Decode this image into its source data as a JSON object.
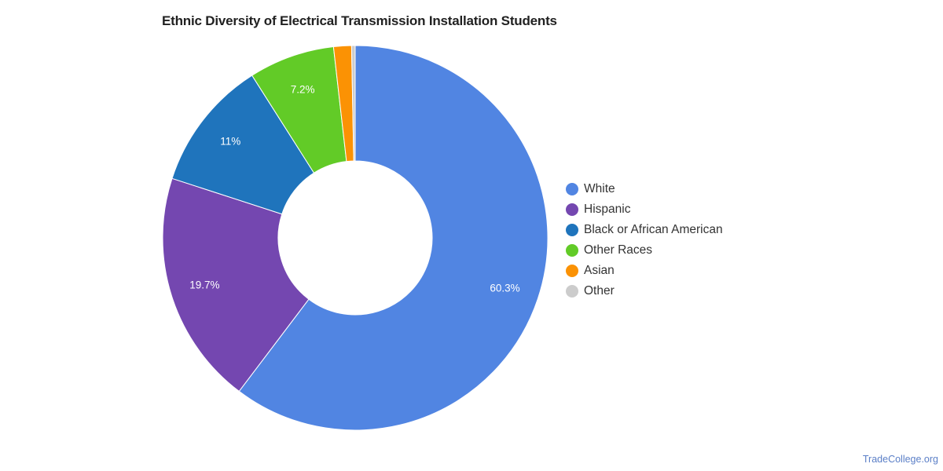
{
  "title": "Ethnic Diversity of Electrical Transmission Installation Students",
  "footer": "TradeCollege.org",
  "chart_data": {
    "type": "pie",
    "donut": true,
    "title": "Ethnic Diversity of Electrical Transmission Installation Students",
    "categories": [
      "White",
      "Hispanic",
      "Black or African American",
      "Other Races",
      "Asian",
      "Other"
    ],
    "values": [
      60.3,
      19.7,
      11,
      7.2,
      1.5,
      0.3
    ],
    "labels": [
      "60.3%",
      "19.7%",
      "11%",
      "7.2%",
      "",
      ""
    ],
    "colors": [
      "#5185e2",
      "#7447b0",
      "#1f74bc",
      "#62cb27",
      "#fb9204",
      "#cccccc"
    ],
    "legend_position": "right"
  },
  "legend": [
    {
      "label": "White",
      "color": "#5185e2"
    },
    {
      "label": "Hispanic",
      "color": "#7447b0"
    },
    {
      "label": "Black or African American",
      "color": "#1f74bc"
    },
    {
      "label": "Other Races",
      "color": "#62cb27"
    },
    {
      "label": "Asian",
      "color": "#fb9204"
    },
    {
      "label": "Other",
      "color": "#cccccc"
    }
  ]
}
